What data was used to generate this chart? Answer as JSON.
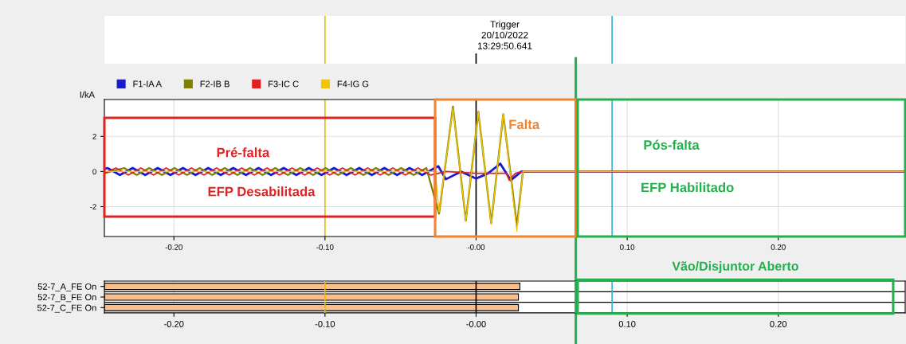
{
  "chart_data": [
    {
      "type": "line",
      "ylabel": "I/kA",
      "legend": "top left",
      "grid": true,
      "marker": "none",
      "line_style": "solid",
      "xlim": [
        -0.246,
        0.284
      ],
      "ylim": [
        -3.7,
        4.1
      ],
      "yticks": [
        -2,
        0,
        2
      ],
      "xticks": [
        {
          "value": -0.2,
          "label": "-0.20"
        },
        {
          "value": -0.1,
          "label": "-0.10"
        },
        {
          "value": 0,
          "label": "-0.00"
        },
        {
          "value": 0.1,
          "label": "0.10"
        },
        {
          "value": 0.2,
          "label": "0.20"
        }
      ],
      "series": [
        {
          "name": "F1-IA A",
          "color": "#1a1acc",
          "x": [
            -0.246,
            -0.244,
            -0.2357,
            -0.2273,
            -0.219,
            -0.2107,
            -0.2023,
            -0.194,
            -0.1857,
            -0.1773,
            -0.169,
            -0.1607,
            -0.1523,
            -0.144,
            -0.1357,
            -0.1273,
            -0.119,
            -0.1107,
            -0.1023,
            -0.094,
            -0.0857,
            -0.0773,
            -0.069,
            -0.0607,
            -0.0523,
            -0.044,
            -0.0357,
            -0.0273,
            -0.025,
            -0.02,
            -0.01,
            0,
            0.008,
            0.016,
            0.023,
            0.03,
            0.284
          ],
          "values": [
            0.15,
            0.2,
            -0.2,
            0.2,
            -0.2,
            0.2,
            -0.2,
            0.2,
            -0.2,
            0.2,
            -0.2,
            0.2,
            -0.2,
            0.2,
            -0.2,
            0.2,
            -0.2,
            0.2,
            -0.2,
            0.2,
            -0.2,
            0.2,
            -0.2,
            0.2,
            -0.2,
            0.2,
            -0.2,
            0.2,
            0.3,
            -0.44,
            0,
            -0.4,
            -0.1,
            0.45,
            -0.5,
            0,
            0
          ]
        },
        {
          "name": "F2-IB B",
          "color": "#808000",
          "x": [
            -0.246,
            -0.2329,
            -0.2246,
            -0.2163,
            -0.2079,
            -0.1996,
            -0.1913,
            -0.1829,
            -0.1746,
            -0.1663,
            -0.1579,
            -0.1496,
            -0.1413,
            -0.1329,
            -0.1246,
            -0.1163,
            -0.1079,
            -0.0996,
            -0.0913,
            -0.0829,
            -0.0746,
            -0.0663,
            -0.0579,
            -0.0496,
            -0.0413,
            -0.0329,
            -0.0245,
            -0.0153,
            -0.0068,
            0.0015,
            0.01,
            0.018,
            0.027,
            0.031,
            0.13,
            0.284
          ],
          "values": [
            -0.1,
            0.2,
            -0.2,
            0.2,
            -0.2,
            0.2,
            -0.2,
            0.2,
            -0.2,
            0.2,
            -0.2,
            0.2,
            -0.2,
            0.2,
            -0.2,
            0.2,
            -0.2,
            0.2,
            -0.2,
            0.2,
            -0.2,
            0.2,
            -0.2,
            0.2,
            -0.2,
            0.2,
            -2.4,
            3.7,
            -2.8,
            3.4,
            -2.95,
            3.27,
            -3.1,
            0,
            0,
            0
          ]
        },
        {
          "name": "F3-IC C",
          "color": "#e02020",
          "x": [
            -0.246,
            -0.2384,
            -0.2301,
            -0.2218,
            -0.2134,
            -0.2051,
            -0.1968,
            -0.1884,
            -0.1801,
            -0.1718,
            -0.1634,
            -0.1551,
            -0.1468,
            -0.1384,
            -0.1301,
            -0.1218,
            -0.1134,
            -0.1051,
            -0.0968,
            -0.0884,
            -0.0801,
            -0.0718,
            -0.0634,
            -0.0551,
            -0.0468,
            -0.0384,
            -0.0301,
            -0.025,
            -0.02,
            0,
            0.02,
            0.022,
            0.026,
            0.031,
            0.284
          ],
          "values": [
            -0.1,
            0.2,
            -0.2,
            0.2,
            -0.2,
            0.2,
            -0.2,
            0.2,
            -0.2,
            0.2,
            -0.2,
            0.2,
            -0.2,
            0.2,
            -0.2,
            0.2,
            -0.2,
            0.2,
            -0.2,
            0.2,
            -0.2,
            0.2,
            -0.2,
            0.2,
            -0.2,
            0.2,
            -0.2,
            -0.1,
            0,
            -0.1,
            -0.1,
            -0.5,
            -0.1,
            0,
            0
          ]
        },
        {
          "name": "F4-IG G",
          "color": "#f5c400",
          "x": [
            -0.246,
            -0.027,
            -0.0245,
            -0.0153,
            -0.0068,
            0.0015,
            0.01,
            0.018,
            0.027,
            0.031,
            0.284
          ],
          "values": [
            0,
            0,
            -2.3,
            3.6,
            -2.8,
            3.4,
            -3.0,
            3.3,
            -3.4,
            0,
            0
          ]
        }
      ],
      "ref_lines": [
        {
          "axis": "x",
          "value": -0.1,
          "color": "#e6c200"
        },
        {
          "axis": "x",
          "value": 0,
          "color": "#000000"
        },
        {
          "axis": "x",
          "value": 0.09,
          "color": "#35b4d8"
        },
        {
          "axis": "x",
          "value": 0.066,
          "color": "#22b14c"
        }
      ],
      "annotations": [
        "Trigger\n20/10/2022\n13:29:50.641",
        "Pré-falta",
        "EFP Desabilitada",
        "Falta",
        "Pós-falta",
        "EFP Habilitado"
      ]
    },
    {
      "type": "bar",
      "orientation": "horizontal",
      "grid": "x",
      "categories": [
        "52-7_A_FE On",
        "52-7_B_FE On",
        "52-7_C_FE On"
      ],
      "base": [
        -0.246,
        -0.246,
        -0.246
      ],
      "values": [
        0.275,
        0.274,
        0.274
      ],
      "color": "#f9be8c",
      "xlim": [
        -0.246,
        0.284
      ],
      "xticks": [
        {
          "value": -0.2,
          "label": "-0.20"
        },
        {
          "value": -0.1,
          "label": "-0.10"
        },
        {
          "value": 0,
          "label": "-0.00"
        },
        {
          "value": 0.1,
          "label": "0.10"
        },
        {
          "value": 0.2,
          "label": "0.20"
        }
      ],
      "ref_lines": [
        {
          "axis": "x",
          "value": -0.1,
          "color": "#e6c200"
        },
        {
          "axis": "x",
          "value": 0,
          "color": "#000000"
        },
        {
          "axis": "x",
          "value": 0.09,
          "color": "#35b4d8"
        },
        {
          "axis": "x",
          "value": 0.066,
          "color": "#22b14c"
        }
      ],
      "annotations": [
        "Vão/Disjuntor Aberto"
      ]
    }
  ]
}
